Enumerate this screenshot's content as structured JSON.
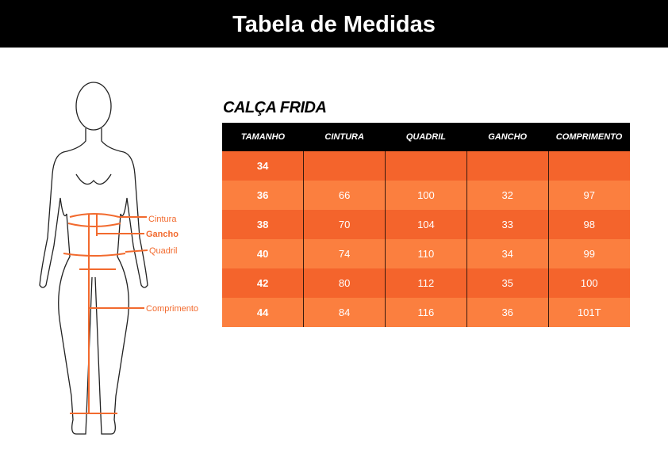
{
  "header": {
    "title": "Tabela de Medidas"
  },
  "figure": {
    "labels": [
      "Cintura",
      "Gancho",
      "Quadril",
      "Comprimento"
    ]
  },
  "table": {
    "title": "CALÇA FRIDA",
    "headers": [
      "TAMANHO",
      "CINTURA",
      "QUADRIL",
      "GANCHO",
      "COMPRIMENTO"
    ],
    "rows": [
      [
        "34"
      ],
      [
        "36",
        "66",
        "100",
        "32",
        "97"
      ],
      [
        "38",
        "70",
        "104",
        "33",
        "98"
      ],
      [
        "40",
        "74",
        "110",
        "34",
        "99"
      ],
      [
        "42",
        "80",
        "112",
        "35",
        "100"
      ],
      [
        "44",
        "84",
        "116",
        "36",
        "101T"
      ]
    ]
  }
}
